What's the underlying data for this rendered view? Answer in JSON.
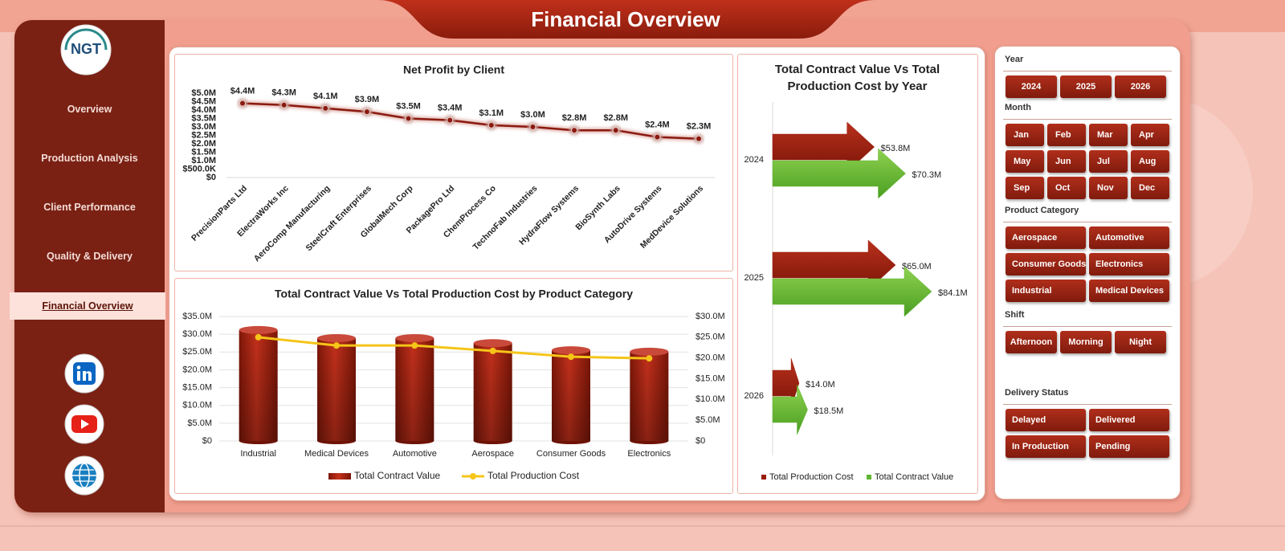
{
  "header": {
    "title": "Financial Overview"
  },
  "logo": {
    "text": "NGT"
  },
  "nav": {
    "items": [
      "Overview",
      "Production Analysis",
      "Client Performance",
      "Quality & Delivery",
      "Financial Overview"
    ]
  },
  "chart_data": [
    {
      "type": "line",
      "title": "Net Profit by Client",
      "categories": [
        "PrecisionParts Ltd",
        "ElectraWorks Inc",
        "AeroComp Manufacturing",
        "SteelCraft Enterprises",
        "GlobalMech Corp",
        "PackagePro Ltd",
        "ChemProcess Co",
        "TechnoFab Industries",
        "HydraFlow Systems",
        "BioSynth Labs",
        "AutoDrive Systems",
        "MedDevice Solutions"
      ],
      "values": [
        4400000,
        4300000,
        4100000,
        3900000,
        3500000,
        3400000,
        3100000,
        3000000,
        2800000,
        2800000,
        2400000,
        2300000
      ],
      "value_labels": [
        "$4.4M",
        "$4.3M",
        "$4.1M",
        "$3.9M",
        "$3.5M",
        "$3.4M",
        "$3.1M",
        "$3.0M",
        "$2.8M",
        "$2.8M",
        "$2.4M",
        "$2.3M"
      ],
      "color": "#8b1a10",
      "ylim": [
        0,
        5000000
      ],
      "yticks": [
        {
          "value": 0,
          "label": "$0"
        },
        {
          "value": 500000,
          "label": "$500.0K"
        },
        {
          "value": 1000000,
          "label": "$1.0M"
        },
        {
          "value": 1500000,
          "label": "$1.5M"
        },
        {
          "value": 2000000,
          "label": "$2.0M"
        },
        {
          "value": 2500000,
          "label": "$2.5M"
        },
        {
          "value": 3000000,
          "label": "$3.0M"
        },
        {
          "value": 3500000,
          "label": "$3.5M"
        },
        {
          "value": 4000000,
          "label": "$4.0M"
        },
        {
          "value": 4500000,
          "label": "$4.5M"
        },
        {
          "value": 5000000,
          "label": "$5.0M"
        }
      ]
    },
    {
      "type": "combo",
      "title": "Total Contract Value Vs Total Production Cost by Product Category",
      "categories": [
        "Industrial",
        "Medical Devices",
        "Automotive",
        "Aerospace",
        "Consumer Goods",
        "Electronics"
      ],
      "series": [
        {
          "name": "Total Contract Value",
          "type": "bar",
          "color": "#a51f0e",
          "values": [
            31200000,
            28900000,
            28900000,
            27500000,
            25500000,
            25100000
          ]
        },
        {
          "name": "Total Production Cost",
          "type": "line",
          "axis": "y2",
          "color": "#f5c518",
          "values": [
            25000000,
            23000000,
            23000000,
            21700000,
            20300000,
            19900000
          ]
        }
      ],
      "ylim": [
        0,
        35000000
      ],
      "yticks": [
        {
          "value": 0,
          "label": "$0"
        },
        {
          "value": 5000000,
          "label": "$5.0M"
        },
        {
          "value": 10000000,
          "label": "$10.0M"
        },
        {
          "value": 15000000,
          "label": "$15.0M"
        },
        {
          "value": 20000000,
          "label": "$20.0M"
        },
        {
          "value": 25000000,
          "label": "$25.0M"
        },
        {
          "value": 30000000,
          "label": "$30.0M"
        },
        {
          "value": 35000000,
          "label": "$35.0M"
        }
      ],
      "y2lim": [
        0,
        30000000
      ],
      "y2ticks": [
        {
          "value": 0,
          "label": "$0"
        },
        {
          "value": 5000000,
          "label": "$5.0M"
        },
        {
          "value": 10000000,
          "label": "$10.0M"
        },
        {
          "value": 15000000,
          "label": "$15.0M"
        },
        {
          "value": 20000000,
          "label": "$20.0M"
        },
        {
          "value": 25000000,
          "label": "$25.0M"
        },
        {
          "value": 30000000,
          "label": "$30.0M"
        }
      ],
      "grid": true
    },
    {
      "type": "arrow-bar",
      "title": "Total Contract Value Vs Total Production Cost by Year",
      "categories": [
        "2024",
        "2025",
        "2026"
      ],
      "series": [
        {
          "name": "Total Production Cost",
          "color": "#9b1c0e",
          "values": [
            53.8,
            65.0,
            14.0
          ],
          "value_labels": [
            "$53.8M",
            "$65.0M",
            "$14.0M"
          ]
        },
        {
          "name": "Total Contract Value",
          "color": "#5fb532",
          "values": [
            70.3,
            84.1,
            18.5
          ],
          "value_labels": [
            "$70.3M",
            "$84.1M",
            "$18.5M"
          ]
        }
      ]
    }
  ],
  "slicers": [
    {
      "title": "Year",
      "options": [
        "2024",
        "2025",
        "2026"
      ]
    },
    {
      "title": "Month",
      "options": [
        "Jan",
        "Feb",
        "Mar",
        "Apr",
        "May",
        "Jun",
        "Jul",
        "Aug",
        "Sep",
        "Oct",
        "Nov",
        "Dec"
      ]
    },
    {
      "title": "Product Category",
      "options": [
        "Aerospace",
        "Automotive",
        "Consumer Goods",
        "Electronics",
        "Industrial",
        "Medical Devices"
      ]
    },
    {
      "title": "Shift",
      "options": [
        "Afternoon",
        "Morning",
        "Night"
      ]
    },
    {
      "title": "Delivery Status",
      "options": [
        "Delayed",
        "Delivered",
        "In Production",
        "Pending"
      ]
    }
  ]
}
